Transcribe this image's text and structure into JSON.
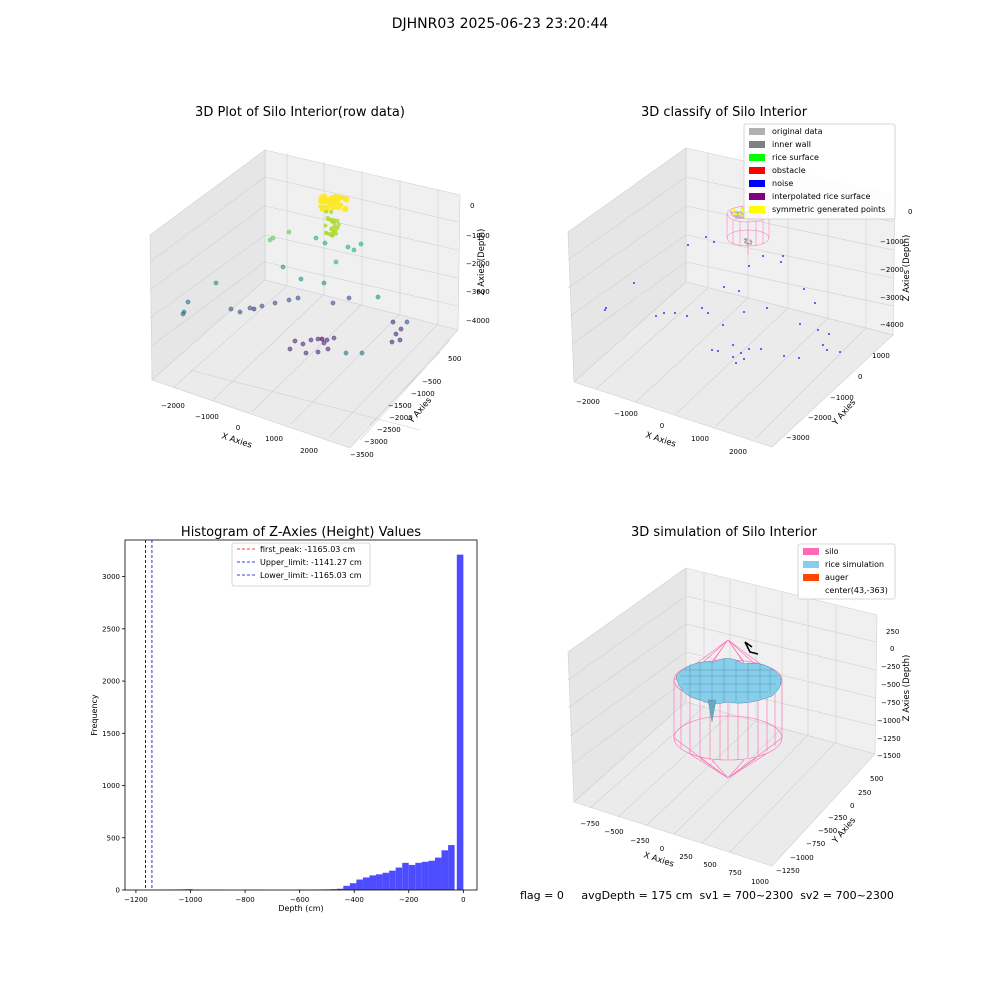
{
  "figure": {
    "suptitle": "DJHNR03 2025-06-23 23:20:44",
    "footer": "flag = 0     avgDepth = 175 cm  sv1 = 700~2300  sv2 = 700~2300"
  },
  "colors": {
    "silo": "#ff69b4",
    "rice": "#87ceeb",
    "auger": "#ff4500",
    "hist": "#4d4dff",
    "peak_line": "#ff0000",
    "limit_line": "#0000cc"
  },
  "chart_data": [
    {
      "type": "scatter",
      "projection": "3d",
      "title": "3D Plot of Silo Interior(row data)",
      "xlabel": "X Axies",
      "ylabel": "Y Axies",
      "zlabel": "Z Axies (Depth)",
      "xticks": [
        "−2000",
        "−1000",
        "0",
        "1000",
        "2000"
      ],
      "yticks": [
        "500",
        "−500",
        "−1000",
        "−1500",
        "−2000",
        "−2500",
        "−3000",
        "−3500"
      ],
      "zticks": [
        "0",
        "−1000",
        "−2000",
        "−3000",
        "−4000"
      ],
      "colormap": "viridis (by depth)",
      "grid": true
    },
    {
      "type": "scatter",
      "projection": "3d",
      "title": "3D classify of Silo Interior",
      "xlabel": "X Axies",
      "ylabel": "Y Axies",
      "zlabel": "Z Axies (Depth)",
      "xticks": [
        "−2000",
        "−1000",
        "0",
        "1000",
        "2000"
      ],
      "yticks": [
        "1000",
        "0",
        "−1000",
        "−2000",
        "−3000"
      ],
      "zticks": [
        "0",
        "−1000",
        "−2000",
        "−3000",
        "−4000"
      ],
      "legend_position": "top-right",
      "legend": [
        {
          "label": "original data",
          "color": "#b0b0b0"
        },
        {
          "label": "inner wall",
          "color": "#808080"
        },
        {
          "label": "rice surface",
          "color": "#00ff00"
        },
        {
          "label": "obstacle",
          "color": "#ff0000"
        },
        {
          "label": "noise",
          "color": "#0000ff"
        },
        {
          "label": "interpolated rice surface",
          "color": "#800080"
        },
        {
          "label": "symmetric generated points",
          "color": "#ffff00"
        }
      ],
      "grid": true
    },
    {
      "type": "bar",
      "subtype": "histogram",
      "title": "Histogram of Z-Axies (Height) Values",
      "xlabel": "Depth (cm)",
      "ylabel": "Frequency",
      "xlim": [
        -1240,
        50
      ],
      "ylim": [
        0,
        3350
      ],
      "xticks": [
        -1200,
        -1000,
        -800,
        -600,
        -400,
        -200,
        0
      ],
      "xtick_labels": [
        "−1200",
        "−1000",
        "−800",
        "−600",
        "−400",
        "−200",
        "0"
      ],
      "yticks": [
        0,
        500,
        1000,
        1500,
        2000,
        2500,
        3000
      ],
      "bin_width": 24,
      "bins": [
        {
          "x0": -1160,
          "v": 2
        },
        {
          "x0": -1136,
          "v": 3
        },
        {
          "x0": -1112,
          "v": 3
        },
        {
          "x0": -1088,
          "v": 4
        },
        {
          "x0": -1064,
          "v": 5
        },
        {
          "x0": -1040,
          "v": 6
        },
        {
          "x0": -1016,
          "v": 8
        },
        {
          "x0": -992,
          "v": 3
        },
        {
          "x0": -944,
          "v": 2
        },
        {
          "x0": -920,
          "v": 2
        },
        {
          "x0": -896,
          "v": 2
        },
        {
          "x0": -800,
          "v": 2
        },
        {
          "x0": -776,
          "v": 2
        },
        {
          "x0": -752,
          "v": 2
        },
        {
          "x0": -608,
          "v": 3
        },
        {
          "x0": -584,
          "v": 3
        },
        {
          "x0": -560,
          "v": 4
        },
        {
          "x0": -536,
          "v": 5
        },
        {
          "x0": -512,
          "v": 6
        },
        {
          "x0": -488,
          "v": 8
        },
        {
          "x0": -464,
          "v": 12
        },
        {
          "x0": -440,
          "v": 40
        },
        {
          "x0": -416,
          "v": 65
        },
        {
          "x0": -392,
          "v": 100
        },
        {
          "x0": -368,
          "v": 120
        },
        {
          "x0": -344,
          "v": 140
        },
        {
          "x0": -320,
          "v": 150
        },
        {
          "x0": -296,
          "v": 165
        },
        {
          "x0": -272,
          "v": 185
        },
        {
          "x0": -248,
          "v": 215
        },
        {
          "x0": -224,
          "v": 260
        },
        {
          "x0": -200,
          "v": 240
        },
        {
          "x0": -176,
          "v": 260
        },
        {
          "x0": -152,
          "v": 270
        },
        {
          "x0": -128,
          "v": 280
        },
        {
          "x0": -104,
          "v": 310
        },
        {
          "x0": -80,
          "v": 380
        },
        {
          "x0": -56,
          "v": 430
        },
        {
          "x0": -24,
          "v": 3210
        }
      ],
      "vlines": [
        {
          "label": "first_peak: -1165.03 cm",
          "x": -1165.03,
          "color": "#ff0000"
        },
        {
          "label": "Upper_limit: -1141.27 cm",
          "x": -1141.27,
          "color": "#0000cc"
        },
        {
          "label": "Lower_limit: -1165.03 cm",
          "x": -1165.03,
          "color": "#0000cc"
        }
      ],
      "legend_position": "top-center",
      "grid": false
    },
    {
      "type": "surface",
      "projection": "3d",
      "title": "3D simulation of Silo Interior",
      "xlabel": "X Axies",
      "ylabel": "Y Axies",
      "zlabel": "Z Axies (Depth)",
      "xticks": [
        "−750",
        "−500",
        "−250",
        "0",
        "250",
        "500",
        "750",
        "1000"
      ],
      "yticks": [
        "500",
        "250",
        "0",
        "−250",
        "−500",
        "−750",
        "−1000",
        "−1250"
      ],
      "zticks": [
        "250",
        "0",
        "−250",
        "−500",
        "−750",
        "−1000",
        "−1250",
        "−1500"
      ],
      "legend_position": "top-right",
      "legend": [
        {
          "label": "silo",
          "color": "#ff69b4"
        },
        {
          "label": "rice simulation",
          "color": "#87ceeb"
        },
        {
          "label": "auger",
          "color": "#ff4500"
        },
        {
          "label": "center(43,-363)",
          "color": ""
        }
      ],
      "grid": true
    }
  ]
}
